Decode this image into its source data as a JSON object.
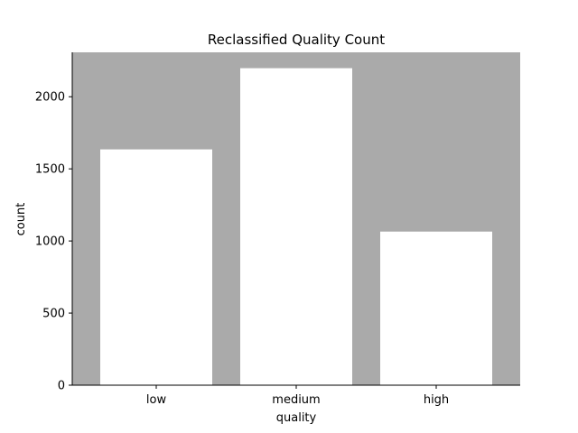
{
  "chart_data": {
    "type": "bar",
    "title": "Reclassified Quality Count",
    "xlabel": "quality",
    "ylabel": "count",
    "categories": [
      "low",
      "medium",
      "high"
    ],
    "values": [
      1635,
      2198,
      1065
    ],
    "ylim": [
      0,
      2308
    ],
    "yticks": [
      0,
      500,
      1000,
      1500,
      2000
    ],
    "grid": false,
    "legend": "none",
    "colors": {
      "plot_background": "#aaaaaa",
      "bar": "#ffffff",
      "axis": "#000000"
    }
  }
}
